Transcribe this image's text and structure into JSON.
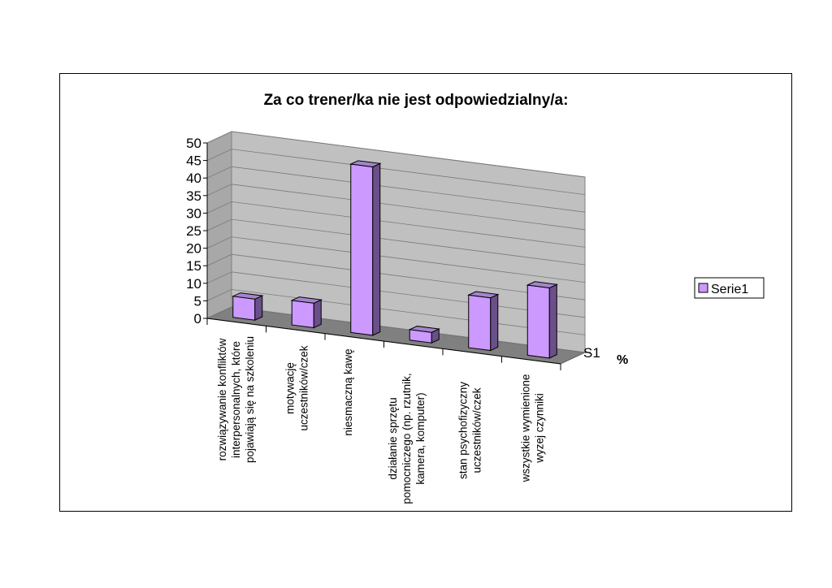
{
  "chart_data": {
    "type": "bar",
    "title": "Za co trener/ka nie jest odpowiedzialny/a:",
    "categories": [
      [
        "rozwiązywanie konfliktów",
        "interpersonalnych, które",
        "pojawiają się na szkoleniu"
      ],
      [
        "motywację",
        "uczestników/czek"
      ],
      [
        "niesmaczną kawę"
      ],
      [
        "działanie sprzętu",
        "pomocniczego (np. rzutnik,",
        "kamera, komputer)"
      ],
      [
        "stan psychofizyczny",
        "uczestników/czek"
      ],
      [
        "wszystkie wymienione",
        "wyzej czynniki"
      ]
    ],
    "series": [
      {
        "name": "Serie1",
        "values": [
          6,
          7,
          48,
          3,
          15,
          20
        ]
      }
    ],
    "ylim": [
      0,
      50
    ],
    "yticks": [
      0,
      5,
      10,
      15,
      20,
      25,
      30,
      35,
      40,
      45,
      50
    ],
    "series_axis_label": "S1",
    "ylabel": "%",
    "legend": {
      "position": "right",
      "entries": [
        "Serie1"
      ]
    },
    "grid": true,
    "colors": {
      "bar_front": "#cc99ff",
      "bar_top": "#a385cc",
      "bar_side": "#6a4f8a",
      "wall": "#c0c0c0",
      "floor": "#808080",
      "side_wall": "#a8a8a8"
    }
  }
}
